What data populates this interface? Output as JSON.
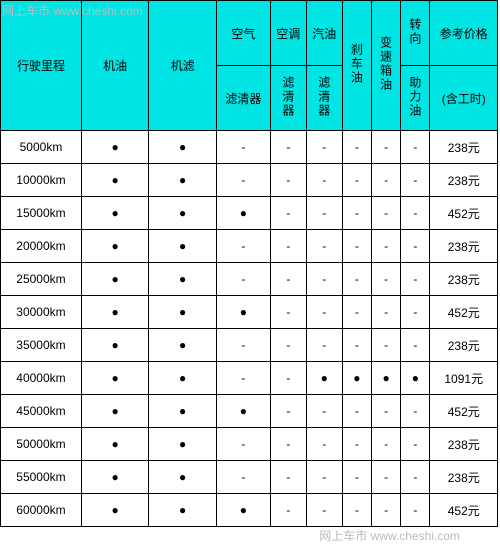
{
  "watermark_text": "网上车市 www.cheshi.com",
  "header": {
    "mileage": "行驶里程",
    "oil": "机油",
    "oil_filter": "机滤",
    "air_top": "空气",
    "air_bottom": "滤清器",
    "ac_top": "空调",
    "ac_bottom": "滤清器",
    "gas_top": "汽油",
    "gas_bottom": "滤清器",
    "brake": "刹车油",
    "trans": "变速箱油",
    "steer_top": "转向",
    "steer_bottom": "助力油",
    "price_top": "参考价格",
    "price_bottom": "(含工时)"
  },
  "dot": "●",
  "dash": "-",
  "rows": [
    {
      "mileage": "5000km",
      "oil": "●",
      "filter": "●",
      "air": "-",
      "ac": "-",
      "gas": "-",
      "brake": "-",
      "trans": "-",
      "steer": "-",
      "price": "238元"
    },
    {
      "mileage": "10000km",
      "oil": "●",
      "filter": "●",
      "air": "-",
      "ac": "-",
      "gas": "-",
      "brake": "-",
      "trans": "-",
      "steer": "-",
      "price": "238元"
    },
    {
      "mileage": "15000km",
      "oil": "●",
      "filter": "●",
      "air": "●",
      "ac": "-",
      "gas": "-",
      "brake": "-",
      "trans": "-",
      "steer": "-",
      "price": "452元"
    },
    {
      "mileage": "20000km",
      "oil": "●",
      "filter": "●",
      "air": "-",
      "ac": "-",
      "gas": "-",
      "brake": "-",
      "trans": "-",
      "steer": "-",
      "price": "238元"
    },
    {
      "mileage": "25000km",
      "oil": "●",
      "filter": "●",
      "air": "-",
      "ac": "-",
      "gas": "-",
      "brake": "-",
      "trans": "-",
      "steer": "-",
      "price": "238元"
    },
    {
      "mileage": "30000km",
      "oil": "●",
      "filter": "●",
      "air": "●",
      "ac": "-",
      "gas": "-",
      "brake": "-",
      "trans": "-",
      "steer": "-",
      "price": "452元"
    },
    {
      "mileage": "35000km",
      "oil": "●",
      "filter": "●",
      "air": "-",
      "ac": "-",
      "gas": "-",
      "brake": "-",
      "trans": "-",
      "steer": "-",
      "price": "238元"
    },
    {
      "mileage": "40000km",
      "oil": "●",
      "filter": "●",
      "air": "-",
      "ac": "-",
      "gas": "●",
      "brake": "●",
      "trans": "●",
      "steer": "●",
      "price": "1091元"
    },
    {
      "mileage": "45000km",
      "oil": "●",
      "filter": "●",
      "air": "●",
      "ac": "-",
      "gas": "-",
      "brake": "-",
      "trans": "-",
      "steer": "-",
      "price": "452元"
    },
    {
      "mileage": "50000km",
      "oil": "●",
      "filter": "●",
      "air": "-",
      "ac": "-",
      "gas": "-",
      "brake": "-",
      "trans": "-",
      "steer": "-",
      "price": "238元"
    },
    {
      "mileage": "55000km",
      "oil": "●",
      "filter": "●",
      "air": "-",
      "ac": "-",
      "gas": "-",
      "brake": "-",
      "trans": "-",
      "steer": "-",
      "price": "238元"
    },
    {
      "mileage": "60000km",
      "oil": "●",
      "filter": "●",
      "air": "●",
      "ac": "-",
      "gas": "-",
      "brake": "-",
      "trans": "-",
      "steer": "-",
      "price": "452元"
    }
  ],
  "colors": {
    "header_bg": "#00e4e4",
    "border": "#000000",
    "cell_bg": "#ffffff",
    "watermark": "#bbbbbb"
  }
}
